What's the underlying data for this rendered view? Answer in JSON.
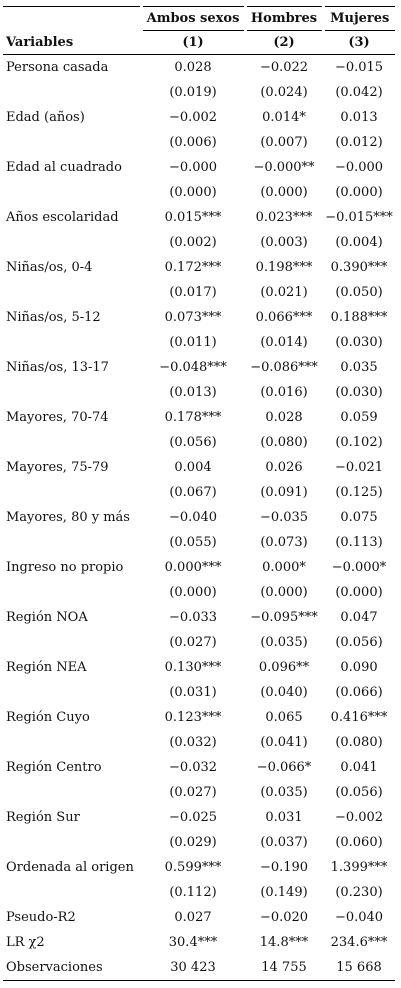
{
  "columns": {
    "groups": [
      "Ambos sexos",
      "Hombres",
      "Mujeres"
    ],
    "variables_label": "Variables",
    "numbers": [
      "(1)",
      "(2)",
      "(3)"
    ]
  },
  "rows": [
    {
      "label": "Persona casada",
      "values": [
        "0.028",
        "−0.022",
        "−0.015"
      ]
    },
    {
      "label": "",
      "values": [
        "(0.019)",
        "(0.024)",
        "(0.042)"
      ]
    },
    {
      "label": "Edad (años)",
      "values": [
        "−0.002",
        "0.014*",
        "0.013"
      ]
    },
    {
      "label": "",
      "values": [
        "(0.006)",
        "(0.007)",
        "(0.012)"
      ]
    },
    {
      "label": "Edad al cuadrado",
      "values": [
        "−0.000",
        "−0.000**",
        "−0.000"
      ]
    },
    {
      "label": "",
      "values": [
        "(0.000)",
        "(0.000)",
        "(0.000)"
      ]
    },
    {
      "label": "Años escolaridad",
      "values": [
        "0.015***",
        "0.023***",
        "−0.015***"
      ]
    },
    {
      "label": "",
      "values": [
        "(0.002)",
        "(0.003)",
        "(0.004)"
      ]
    },
    {
      "label": "Niñas/os, 0-4",
      "values": [
        "0.172***",
        "0.198***",
        "0.390***"
      ]
    },
    {
      "label": "",
      "values": [
        "(0.017)",
        "(0.021)",
        "(0.050)"
      ]
    },
    {
      "label": "Niñas/os, 5-12",
      "values": [
        "0.073***",
        "0.066***",
        "0.188***"
      ]
    },
    {
      "label": "",
      "values": [
        "(0.011)",
        "(0.014)",
        "(0.030)"
      ]
    },
    {
      "label": "Niñas/os, 13-17",
      "values": [
        "−0.048***",
        "−0.086***",
        "0.035"
      ]
    },
    {
      "label": "",
      "values": [
        "(0.013)",
        "(0.016)",
        "(0.030)"
      ]
    },
    {
      "label": "Mayores, 70-74",
      "values": [
        "0.178***",
        "0.028",
        "0.059"
      ]
    },
    {
      "label": "",
      "values": [
        "(0.056)",
        "(0.080)",
        "(0.102)"
      ]
    },
    {
      "label": "Mayores, 75-79",
      "values": [
        "0.004",
        "0.026",
        "−0.021"
      ]
    },
    {
      "label": "",
      "values": [
        "(0.067)",
        "(0.091)",
        "(0.125)"
      ]
    },
    {
      "label": "Mayores, 80 y más",
      "values": [
        "−0.040",
        "−0.035",
        "0.075"
      ]
    },
    {
      "label": "",
      "values": [
        "(0.055)",
        "(0.073)",
        "(0.113)"
      ]
    },
    {
      "label": "Ingreso no propio",
      "values": [
        "0.000***",
        "0.000*",
        "−0.000*"
      ]
    },
    {
      "label": "",
      "values": [
        "(0.000)",
        "(0.000)",
        "(0.000)"
      ]
    },
    {
      "label": "Región NOA",
      "values": [
        "−0.033",
        "−0.095***",
        "0.047"
      ]
    },
    {
      "label": "",
      "values": [
        "(0.027)",
        "(0.035)",
        "(0.056)"
      ]
    },
    {
      "label": "Región NEA",
      "values": [
        "0.130***",
        "0.096**",
        "0.090"
      ]
    },
    {
      "label": "",
      "values": [
        "(0.031)",
        "(0.040)",
        "(0.066)"
      ]
    },
    {
      "label": "Región Cuyo",
      "values": [
        "0.123***",
        "0.065",
        "0.416***"
      ]
    },
    {
      "label": "",
      "values": [
        "(0.032)",
        "(0.041)",
        "(0.080)"
      ]
    },
    {
      "label": "Región Centro",
      "values": [
        "−0.032",
        "−0.066*",
        "0.041"
      ]
    },
    {
      "label": "",
      "values": [
        "(0.027)",
        "(0.035)",
        "(0.056)"
      ]
    },
    {
      "label": "Región Sur",
      "values": [
        "−0.025",
        "0.031",
        "−0.002"
      ]
    },
    {
      "label": "",
      "values": [
        "(0.029)",
        "(0.037)",
        "(0.060)"
      ]
    },
    {
      "label": "Ordenada al origen",
      "values": [
        "0.599***",
        "−0.190",
        "1.399***"
      ]
    },
    {
      "label": "",
      "values": [
        "(0.112)",
        "(0.149)",
        "(0.230)"
      ]
    },
    {
      "label": "Pseudo-R2",
      "values": [
        "0.027",
        "−0.020",
        "−0.040"
      ]
    },
    {
      "label": "LR χ2",
      "values": [
        "30.4***",
        "14.8***",
        "234.6***"
      ]
    },
    {
      "label": "Observaciones",
      "values": [
        "30 423",
        "14 755",
        "15 668"
      ]
    }
  ]
}
